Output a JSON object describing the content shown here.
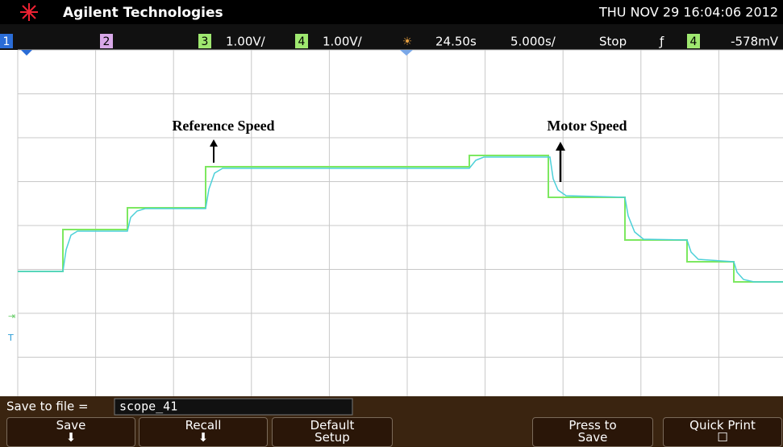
{
  "header": {
    "brand": "Agilent Technologies",
    "datetime": "THU NOV 29 16:04:06 2012"
  },
  "status_bar": {
    "ch1": "1",
    "ch2": "2",
    "ch3": "3",
    "ch3_scale": "1.00V/",
    "ch4": "4",
    "ch4_scale": "1.00V/",
    "delay": "24.50s",
    "timebase": "5.000s/",
    "run_state": "Stop",
    "trigger_source": "4",
    "trigger_level": "-578mV"
  },
  "annotations": {
    "reference": "Reference Speed",
    "motor": "Motor Speed"
  },
  "save_to_file": {
    "label": "Save to file =",
    "filename": "scope_41"
  },
  "softkeys": [
    "Save",
    "Recall",
    "Default Setup",
    "Press to Save",
    "Quick Print"
  ]
}
